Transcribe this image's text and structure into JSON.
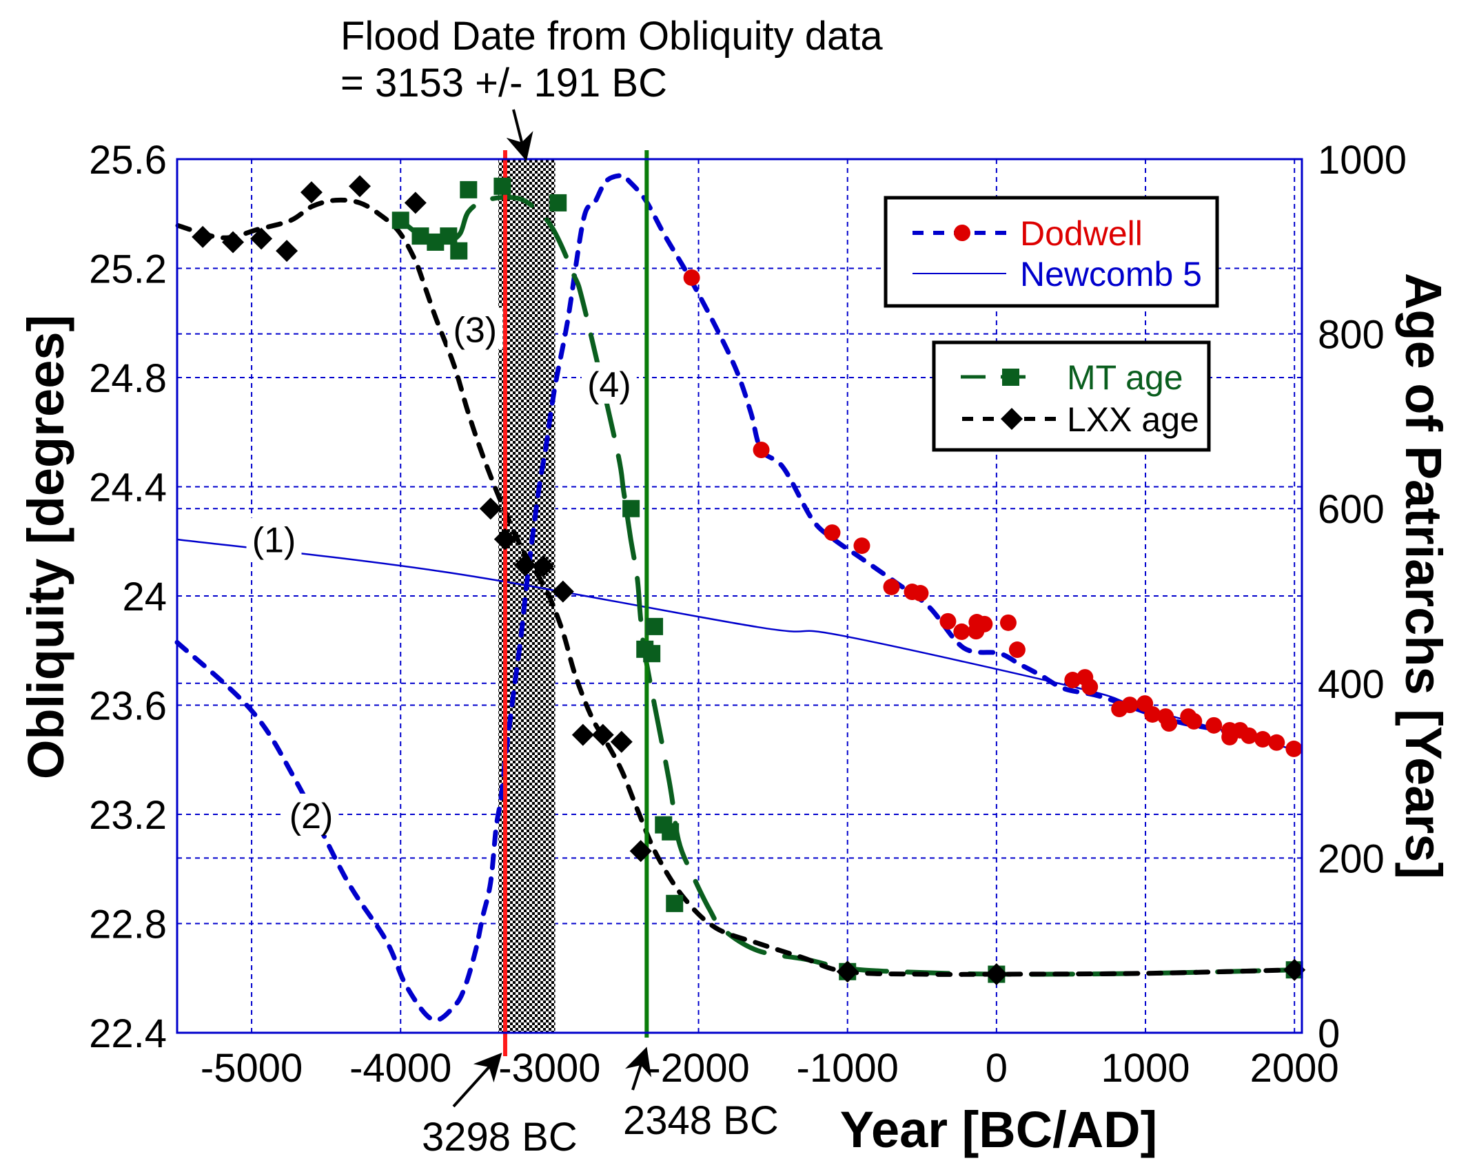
{
  "chart_data": {
    "type": "line",
    "title": "Flood Date from Obliquity data = 3153 +/- 191 BC",
    "annotation_lines": [
      "Flood Date from Obliquity data",
      "= 3153 +/- 191 BC"
    ],
    "xlabel": "Year [BC/AD]",
    "ylabel_left": "Obliquity [degrees]",
    "ylabel_right": "Age of Patriarchs [Years]",
    "xlim": [
      -5500,
      2050
    ],
    "ylim_left": [
      22.4,
      25.6
    ],
    "ylim_right": [
      0,
      1000
    ],
    "grid": true,
    "x_ticks": [
      -5000,
      -4000,
      -3000,
      -2000,
      -1000,
      0,
      1000,
      2000
    ],
    "x_tick_labels": [
      "-5000",
      "-4000",
      "-3000",
      "-2000",
      "-1000",
      "0",
      "1000",
      "2000"
    ],
    "y_left_ticks": [
      22.4,
      22.8,
      23.2,
      23.6,
      24.0,
      24.4,
      24.8,
      25.2,
      25.6
    ],
    "y_left_tick_labels": [
      "22.4",
      "22.8",
      "23.2",
      "23.6",
      "24",
      "24.4",
      "24.8",
      "25.2",
      "25.6"
    ],
    "y_right_ticks": [
      0,
      200,
      400,
      600,
      800,
      1000
    ],
    "y_right_tick_labels": [
      "0",
      "200",
      "400",
      "600",
      "800",
      "1000"
    ],
    "flood_band": {
      "center_year": -3153,
      "uncertainty": 191,
      "from": -3344,
      "to": -2962
    },
    "vertical_markers": [
      {
        "name": "3298 BC",
        "year": -3298,
        "color": "#ff1a1a",
        "label": "3298 BC"
      },
      {
        "name": "2348 BC",
        "year": -2348,
        "color": "#0a7d0a",
        "label": "2348 BC"
      }
    ],
    "curve_labels": [
      {
        "text": "(1)",
        "year": -4850,
        "value": 24.18,
        "axis": "left"
      },
      {
        "text": "(2)",
        "year": -4600,
        "value": 23.17,
        "axis": "left"
      },
      {
        "text": "(3)",
        "year": -3500,
        "value": 24.95,
        "axis": "left"
      },
      {
        "text": "(4)",
        "year": -2600,
        "value": 24.75,
        "axis": "left"
      }
    ],
    "legend": [
      {
        "label": "Dodwell",
        "color": "#dd0000",
        "marker": "circle",
        "line": "dashed",
        "line_color": "#0000cc"
      },
      {
        "label": "Newcomb 5",
        "color": "#0000cc",
        "marker": "none",
        "line": "solid",
        "line_color": "#0000cc"
      },
      {
        "label": "MT age",
        "color": "#0a5e1e",
        "marker": "square",
        "line": "long-dashed",
        "line_color": "#0a5e1e"
      },
      {
        "label": "LXX age",
        "color": "#000000",
        "marker": "diamond",
        "line": "dashed",
        "line_color": "#000000"
      }
    ],
    "series": [
      {
        "name": "Newcomb 5",
        "axis": "left",
        "style": "solid",
        "color": "#0000cc",
        "x": [
          -5500,
          -3682,
          -1602,
          -1050,
          569,
          987,
          2046
        ],
        "y": [
          24.207,
          24.086,
          23.886,
          23.856,
          23.66,
          23.588,
          23.43
        ]
      },
      {
        "name": "Dodwell fit",
        "axis": "left",
        "style": "dashed",
        "color": "#0000cc",
        "x": [
          -5500,
          -5000,
          -4700,
          -4362,
          -4099,
          -3960,
          -3784,
          -3636,
          -3567,
          -3497,
          -3451,
          -3396,
          -3359,
          -3326,
          -3289,
          -3238,
          -3192,
          -3146,
          -3072,
          -3026,
          -2966,
          -2878,
          -2772,
          -2698,
          -2619,
          -2513,
          -2467,
          -2356,
          -2226,
          -2064,
          -1879,
          -1741,
          -1648,
          -1579,
          -1431,
          -1236,
          -1098,
          -913,
          -677,
          -453,
          -221,
          18,
          155,
          295,
          457,
          709,
          1171,
          1635,
          2005
        ],
        "y": [
          23.83,
          23.58,
          23.32,
          22.96,
          22.74,
          22.57,
          22.448,
          22.5,
          22.57,
          22.7,
          22.82,
          22.95,
          23.15,
          23.26,
          23.44,
          23.66,
          23.85,
          24.08,
          24.39,
          24.54,
          24.76,
          25.01,
          25.38,
          25.44,
          25.52,
          25.54,
          25.52,
          25.45,
          25.32,
          25.17,
          24.98,
          24.82,
          24.67,
          24.535,
          24.47,
          24.28,
          24.21,
          24.14,
          24.05,
          23.96,
          23.81,
          23.79,
          23.75,
          23.71,
          23.66,
          23.63,
          23.545,
          23.495,
          23.445
        ]
      },
      {
        "name": "Dodwell",
        "axis": "left",
        "style": "markers",
        "marker": "circle",
        "color": "#dd0000",
        "x": [
          -2046,
          -1579,
          -1103,
          -904,
          -705,
          -566,
          -511,
          -326,
          -234,
          -137,
          -132,
          -81,
          79,
          139,
          511,
          594,
          626,
          825,
          895,
          996,
          1047,
          1135,
          1158,
          1288,
          1325,
          1459,
          1565,
          1565,
          1635,
          1695,
          1787,
          1880,
          1996
        ],
        "y": [
          25.166,
          24.535,
          24.232,
          24.184,
          24.033,
          24.015,
          24.01,
          23.907,
          23.869,
          23.871,
          23.904,
          23.897,
          23.902,
          23.803,
          23.692,
          23.702,
          23.667,
          23.586,
          23.601,
          23.606,
          23.566,
          23.558,
          23.533,
          23.558,
          23.541,
          23.526,
          23.508,
          23.483,
          23.508,
          23.488,
          23.475,
          23.463,
          23.44
        ]
      },
      {
        "name": "MT age curve",
        "axis": "right",
        "style": "long-dashed",
        "color": "#0a5e1e",
        "x": [
          -4000,
          -3867,
          -3766,
          -3678,
          -3600,
          -3544,
          -3428,
          -3248,
          -3128,
          -2984,
          -2841,
          -2771,
          -2550,
          -2503,
          -2457,
          -2411,
          -2388,
          -2351,
          -2198,
          -2134,
          -2041,
          -1926,
          -1833,
          -1602,
          -1280,
          -1015,
          -680,
          0,
          1000,
          2000
        ],
        "y": [
          930,
          912,
          900,
          905,
          915,
          940,
          953,
          956,
          948,
          922,
          869,
          833,
          670,
          620,
          567,
          520,
          473,
          425,
          289,
          220,
          181,
          141,
          118,
          94,
          84,
          74,
          70,
          67,
          68,
          72
        ]
      },
      {
        "name": "MT age",
        "axis": "right",
        "style": "markers",
        "marker": "square",
        "color": "#0a5e1e",
        "x": [
          -4000,
          -3867,
          -3766,
          -3678,
          -3609,
          -3544,
          -3317,
          -2943,
          -2453,
          -2314,
          -2296,
          -2360,
          -2235,
          -2189,
          -2161,
          -1000,
          0,
          2000
        ],
        "y": [
          930,
          912,
          905,
          912,
          895,
          965,
          969,
          950,
          600,
          434,
          465,
          439,
          238,
          230,
          148,
          70,
          67,
          72
        ]
      },
      {
        "name": "LXX age curve",
        "axis": "right",
        "style": "dashed",
        "color": "#000000",
        "x": [
          -5495,
          -5194,
          -4949,
          -4736,
          -4593,
          -4436,
          -4274,
          -4135,
          -4011,
          -3904,
          -3835,
          -3761,
          -3641,
          -3548,
          -3451,
          -3317,
          -3178,
          -3026,
          -2915,
          -2827,
          -2716,
          -2610,
          -2513,
          -2407,
          -2282,
          -2101,
          -1884,
          -1593,
          -1301,
          -1015,
          -500,
          0,
          1000,
          2000
        ],
        "y": [
          924,
          910,
          920,
          930,
          946,
          953,
          950,
          936,
          917,
          885,
          853,
          817,
          764,
          711,
          662,
          604,
          552,
          508,
          461,
          409,
          361,
          330,
          299,
          254,
          204,
          155,
          120,
          102,
          86,
          70,
          67,
          67,
          68,
          72
        ]
      },
      {
        "name": "LXX age",
        "axis": "right",
        "style": "markers",
        "marker": "diamond",
        "color": "#000000",
        "x": [
          -5328,
          -5125,
          -4935,
          -4764,
          -4598,
          -4274,
          -3900,
          -3396,
          -3299,
          -3164,
          -3044,
          -2910,
          -2776,
          -2642,
          -2517,
          -2388,
          -1000,
          0,
          2000
        ],
        "y": [
          911,
          905,
          909,
          895,
          962,
          969,
          950,
          600,
          565,
          535,
          534,
          505,
          341,
          341,
          333,
          208,
          70,
          67,
          72
        ]
      }
    ]
  }
}
